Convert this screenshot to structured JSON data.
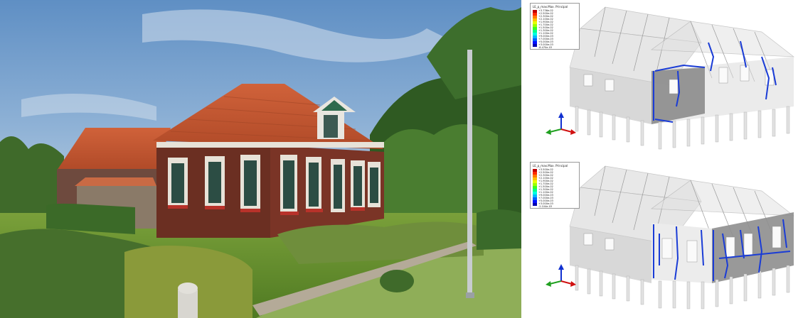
{
  "fem_top": {
    "legend_title": "LE_p_max.Max. Principal",
    "legend_values": [
      "+3.736e-02",
      "+2.500e-02",
      "+2.300e-02",
      "+2.100e-02",
      "+1.900e-02",
      "+1.700e-02",
      "+1.500e-02",
      "+1.300e-02",
      "+1.100e-02",
      "+9.000e-03",
      "+7.000e-03",
      "+5.000e-03",
      "+3.000e-03",
      "-8.470e-03"
    ]
  },
  "fem_bottom": {
    "legend_title": "LE_p_max.Max. Principal",
    "legend_values": [
      "+3.500e-02",
      "+2.500e-02",
      "+2.300e-02",
      "+2.100e-02",
      "+1.900e-02",
      "+1.700e-02",
      "+1.500e-02",
      "+1.300e-02",
      "+1.100e-02",
      "+9.000e-03",
      "+7.000e-03",
      "+5.000e-03",
      "+3.000e-03",
      "-2.104e-03"
    ]
  },
  "legend_colors": [
    "#c00000",
    "#ff2a00",
    "#ff7a00",
    "#ffc000",
    "#e6ff00",
    "#9cff00",
    "#3cff20",
    "#00ff8a",
    "#00ffe0",
    "#00b8ff",
    "#0060ff",
    "#0010ff",
    "#0000b0"
  ],
  "axis_triad_colors": {
    "x": "#d01010",
    "y": "#20a020",
    "z": "#1030d0"
  },
  "crack_color": "#1a3cd6"
}
